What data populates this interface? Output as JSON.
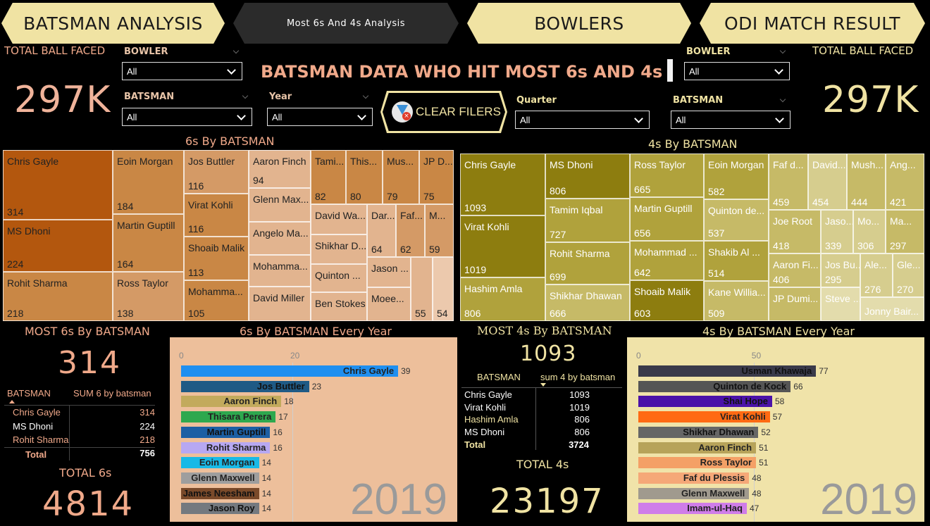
{
  "nav": {
    "batsman_analysis": "BATSMAN ANALYSIS",
    "most_6s_4s": "Most 6s And 4s Analysis",
    "bowlers": "BOWLERS",
    "odi_match_result": "ODI MATCH RESULT"
  },
  "header": {
    "title": "BATSMAN DATA WHO HIT MOST 6s AND 4s",
    "clear_filters": "CLEAR FILERS"
  },
  "kpi": {
    "left_label": "TOTAL BALL FACED",
    "left_value": "297K",
    "right_label": "TOTAL BALL FACED",
    "right_value": "297K"
  },
  "slicers": {
    "bowler_left": {
      "label": "BOWLER",
      "value": "All"
    },
    "batsman_left": {
      "label": "BATSMAN",
      "value": "All"
    },
    "year": {
      "label": "Year",
      "value": "All"
    },
    "quarter": {
      "label": "Quarter",
      "value": "All"
    },
    "bowler_right": {
      "label": "BOWLER",
      "value": "All"
    },
    "batsman_right": {
      "label": "BATSMAN",
      "value": "All"
    }
  },
  "sixes_treemap": {
    "title": "6s By BATSMAN",
    "tiles": [
      {
        "name": "Chris Gayle",
        "value": "314"
      },
      {
        "name": "MS Dhoni",
        "value": "224"
      },
      {
        "name": "Rohit Sharma",
        "value": "218"
      },
      {
        "name": "Eoin Morgan",
        "value": "184"
      },
      {
        "name": "Martin Guptill",
        "value": "164"
      },
      {
        "name": "Ross Taylor",
        "value": "138"
      },
      {
        "name": "Jos Buttler",
        "value": "116"
      },
      {
        "name": "Virat Kohli",
        "value": "116"
      },
      {
        "name": "Shoaib Malik",
        "value": "113"
      },
      {
        "name": "Mohamma...",
        "value": "105"
      },
      {
        "name": "Aaron Finch",
        "value": "94"
      },
      {
        "name": "Glenn Max...",
        "value": ""
      },
      {
        "name": "Angelo Ma...",
        "value": ""
      },
      {
        "name": "Mohamma...",
        "value": ""
      },
      {
        "name": "David Miller",
        "value": ""
      },
      {
        "name": "Tami...",
        "value": "82"
      },
      {
        "name": "This...",
        "value": "80"
      },
      {
        "name": "Mus...",
        "value": "79"
      },
      {
        "name": "JP D...",
        "value": "75"
      },
      {
        "name": "David Wa...",
        "value": ""
      },
      {
        "name": "Shikhar D...",
        "value": ""
      },
      {
        "name": "Quinton ...",
        "value": ""
      },
      {
        "name": "Ben Stokes",
        "value": ""
      },
      {
        "name": "Dar...",
        "value": "64"
      },
      {
        "name": "Faf...",
        "value": "62"
      },
      {
        "name": "M...",
        "value": "59"
      },
      {
        "name": "Jason ...",
        "value": ""
      },
      {
        "name": "Moee...",
        "value": ""
      },
      {
        "name": "",
        "value": "55"
      },
      {
        "name": "",
        "value": "54"
      }
    ]
  },
  "fours_treemap": {
    "title": "4s By BATSMAN",
    "tiles": [
      {
        "name": "Chris Gayle",
        "value": "1093"
      },
      {
        "name": "Virat Kohli",
        "value": "1019"
      },
      {
        "name": "Hashim Amla",
        "value": "806"
      },
      {
        "name": "MS Dhoni",
        "value": "806"
      },
      {
        "name": "Tamim Iqbal",
        "value": "727"
      },
      {
        "name": "Rohit Sharma",
        "value": "699"
      },
      {
        "name": "Shikhar Dhawan",
        "value": "666"
      },
      {
        "name": "Ross Taylor",
        "value": "665"
      },
      {
        "name": "Martin Guptill",
        "value": "656"
      },
      {
        "name": "Mohammad ...",
        "value": "642"
      },
      {
        "name": "Shoaib Malik",
        "value": "603"
      },
      {
        "name": "Eoin Morgan",
        "value": "582"
      },
      {
        "name": "Quinton de...",
        "value": "537"
      },
      {
        "name": "Shakib Al ...",
        "value": "514"
      },
      {
        "name": "Kane Willia...",
        "value": "509"
      },
      {
        "name": "Faf d...",
        "value": "459"
      },
      {
        "name": "David...",
        "value": "454"
      },
      {
        "name": "Mush...",
        "value": "444"
      },
      {
        "name": "Ang...",
        "value": "421"
      },
      {
        "name": "Joe Root",
        "value": "418"
      },
      {
        "name": "Jaso...",
        "value": "339"
      },
      {
        "name": "Mo...",
        "value": "306"
      },
      {
        "name": "Ma...",
        "value": "297"
      },
      {
        "name": "Aaron Fi...",
        "value": "406"
      },
      {
        "name": "Jos Bu...",
        "value": "295"
      },
      {
        "name": "Ale...",
        "value": "276"
      },
      {
        "name": "Gle...",
        "value": "270"
      },
      {
        "name": "JP Dumi...",
        "value": ""
      },
      {
        "name": "Steve ...",
        "value": ""
      },
      {
        "name": "Jonny Bair...",
        "value": ""
      }
    ]
  },
  "most6": {
    "title": "MOST 6s By BATSMAN",
    "value": "314",
    "col1": "BATSMAN",
    "col2": "SUM 6 by batsman",
    "rows": [
      {
        "name": "Chris Gayle",
        "value": "314"
      },
      {
        "name": "MS Dhoni",
        "value": "224"
      },
      {
        "name": "Rohit Sharma",
        "value": "218"
      }
    ],
    "total_label": "Total",
    "total_value": "756",
    "total_title": "TOTAL 6s",
    "total_6s": "4814"
  },
  "most4": {
    "title": "MOST 4s By BATSMAN",
    "value": "1093",
    "col1": "BATSMAN",
    "col2": "sum 4 by batsman",
    "rows": [
      {
        "name": "Chris Gayle",
        "value": "1093"
      },
      {
        "name": "Virat Kohli",
        "value": "1019"
      },
      {
        "name": "Hashim Amla",
        "value": "806"
      },
      {
        "name": "MS Dhoni",
        "value": "806"
      }
    ],
    "total_label": "Total",
    "total_value": "3724",
    "total_title": "TOTAL 4s",
    "total_4s": "23197"
  },
  "chart_data": [
    {
      "type": "bar",
      "title": "6s By BATSMAN Every Year",
      "year": "2019",
      "xticks": [
        "0",
        "20"
      ],
      "xlim": [
        0,
        50
      ],
      "categories": [
        "Chris Gayle",
        "Jos Buttler",
        "Aaron Finch",
        "Thisara Perera",
        "Martin Guptill",
        "Rohit Sharma",
        "Eoin Morgan",
        "Glenn Maxwell",
        "James Neesham",
        "Jason Roy"
      ],
      "values": [
        39,
        23,
        18,
        17,
        16,
        16,
        14,
        14,
        14,
        14
      ],
      "colors": [
        "#1f8ff0",
        "#1f5a85",
        "#c2aa5c",
        "#2ea84e",
        "#1c5fa4",
        "#b7a8f2",
        "#18b9e6",
        "#9e9e9e",
        "#7a4a2a",
        "#74797f"
      ]
    },
    {
      "type": "bar",
      "title": "4s By BATSMAN Every Year",
      "year": "2019",
      "xticks": [
        "0",
        "50"
      ],
      "xlim": [
        0,
        116
      ],
      "categories": [
        "Usman Khawaja",
        "Quinton de Kock",
        "Shai Hope",
        "Virat Kohli",
        "Shikhar Dhawan",
        "Aaron Finch",
        "Ross Taylor",
        "Faf du Plessis",
        "Glenn Maxwell",
        "Imam-ul-Haq"
      ],
      "values": [
        77,
        66,
        58,
        57,
        52,
        51,
        51,
        48,
        48,
        47
      ],
      "colors": [
        "#3a3a4a",
        "#555555",
        "#4b12a8",
        "#ff6a13",
        "#666666",
        "#b7a35a",
        "#f4a066",
        "#f5a878",
        "#a09a8e",
        "#cf7de9"
      ]
    }
  ]
}
